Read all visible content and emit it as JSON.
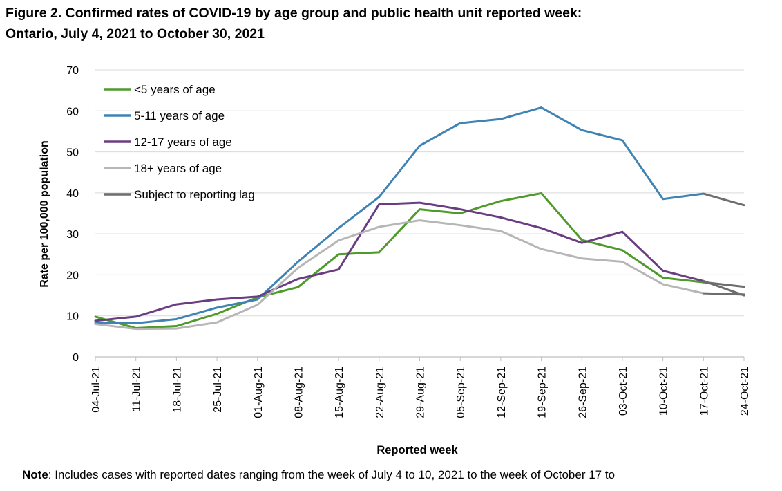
{
  "figure": {
    "title_line1": "Figure 2. Confirmed rates of COVID-19 by age group and public health unit reported week:",
    "title_line2": "Ontario, July 4, 2021 to October 30, 2021"
  },
  "note": {
    "label": "Note",
    "text": ": Includes cases with reported dates ranging from the week of July 4 to 10, 2021 to the week of October 17 to"
  },
  "chart_data": {
    "type": "line",
    "title": "",
    "xlabel": "Reported week",
    "ylabel": "Rate per 100,000 population",
    "ylim": [
      0,
      70
    ],
    "yticks": [
      0,
      10,
      20,
      30,
      40,
      50,
      60,
      70
    ],
    "grid": true,
    "legend_position": "top-left",
    "categories": [
      "04-Jul-21",
      "11-Jul-21",
      "18-Jul-21",
      "25-Jul-21",
      "01-Aug-21",
      "08-Aug-21",
      "15-Aug-21",
      "22-Aug-21",
      "29-Aug-21",
      "05-Sep-21",
      "12-Sep-21",
      "19-Sep-21",
      "26-Sep-21",
      "03-Oct-21",
      "10-Oct-21",
      "17-Oct-21",
      "24-Oct-21"
    ],
    "series": [
      {
        "name": "<5 years of age",
        "color": "#4e9a2a",
        "values": [
          9.8,
          7.0,
          7.5,
          10.5,
          14.5,
          17.0,
          25.0,
          25.5,
          36.0,
          35.0,
          38.0,
          39.9,
          28.5,
          26.0,
          19.3,
          18.2,
          null
        ]
      },
      {
        "name": "5-11 years of age",
        "color": "#3f83b5",
        "values": [
          8.2,
          8.2,
          9.2,
          12.0,
          14.0,
          23.2,
          31.4,
          39.0,
          51.5,
          57.0,
          58.0,
          60.8,
          55.3,
          52.8,
          38.5,
          39.8,
          null
        ]
      },
      {
        "name": "12-17 years of age",
        "color": "#6a3d82",
        "values": [
          8.8,
          9.8,
          12.8,
          14.0,
          14.7,
          19.0,
          21.3,
          37.2,
          37.6,
          36.0,
          34.0,
          31.4,
          27.8,
          30.5,
          21.0,
          18.5,
          null
        ]
      },
      {
        "name": "18+ years of age",
        "color": "#b6b6b6",
        "values": [
          8.0,
          6.8,
          6.9,
          8.4,
          12.7,
          21.7,
          28.4,
          31.7,
          33.3,
          32.1,
          30.7,
          26.3,
          24.0,
          23.2,
          17.7,
          15.5,
          null
        ]
      },
      {
        "name": "Subject to reporting lag",
        "color": "#6d6d6d",
        "segments": [
          {
            "x": [
              "17-Oct-21",
              "24-Oct-21"
            ],
            "values": [
              39.8,
              37.0
            ]
          },
          {
            "x": [
              "17-Oct-21",
              "24-Oct-21"
            ],
            "values": [
              18.2,
              17.1
            ]
          },
          {
            "x": [
              "17-Oct-21",
              "24-Oct-21"
            ],
            "values": [
              18.5,
              15.0
            ]
          },
          {
            "x": [
              "17-Oct-21",
              "24-Oct-21"
            ],
            "values": [
              15.5,
              15.2
            ]
          }
        ]
      }
    ]
  }
}
